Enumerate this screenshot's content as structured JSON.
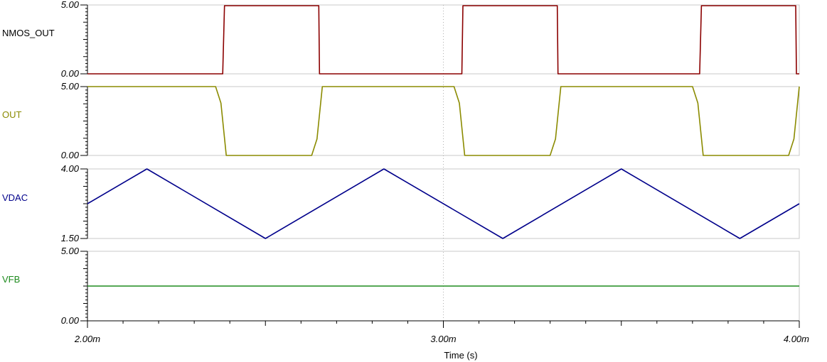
{
  "chart_data": {
    "type": "line",
    "x_unit": "s",
    "xlabel": "Time (s)",
    "xlim": [
      0.002,
      0.004
    ],
    "xticks": [
      {
        "value": 0.002,
        "label": "2.00m"
      },
      {
        "value": 0.003,
        "label": "3.00m"
      },
      {
        "value": 0.004,
        "label": "4.00m"
      }
    ],
    "grid": "vertical dotted line at 3.00m",
    "panels": [
      {
        "name": "NMOS_OUT",
        "color": "#8b0000",
        "ylim": [
          0,
          5
        ],
        "yticks": [
          "5.00",
          "0.00"
        ],
        "x": [
          0.002,
          0.00238,
          0.002385,
          0.00265,
          0.002652,
          0.003052,
          0.003055,
          0.00332,
          0.003322,
          0.00372,
          0.003725,
          0.00399,
          0.003992,
          0.004
        ],
        "y": [
          0,
          0,
          4.95,
          4.95,
          0,
          0,
          4.95,
          4.95,
          0,
          0,
          4.95,
          4.95,
          0,
          0
        ]
      },
      {
        "name": "OUT",
        "color": "#8b8b00",
        "ylim": [
          0,
          5
        ],
        "yticks": [
          "5.00",
          "0.00"
        ],
        "x": [
          0.002,
          0.00236,
          0.002375,
          0.00239,
          0.00263,
          0.002645,
          0.00266,
          0.00303,
          0.003045,
          0.00306,
          0.0033,
          0.003315,
          0.00333,
          0.0037,
          0.003715,
          0.00373,
          0.00397,
          0.003985,
          0.004
        ],
        "y": [
          5,
          5,
          3.8,
          0,
          0,
          1.2,
          5,
          5,
          3.8,
          0,
          0,
          1.2,
          5,
          5,
          3.8,
          0,
          0,
          1.2,
          5
        ]
      },
      {
        "name": "VDAC",
        "color": "#00008b",
        "ylim": [
          1.5,
          4
        ],
        "yticks": [
          "4.00",
          "1.50"
        ],
        "x": [
          0.002,
          0.002167,
          0.0025,
          0.002833,
          0.003167,
          0.0035,
          0.003833,
          0.004
        ],
        "y": [
          2.75,
          4,
          1.5,
          4,
          1.5,
          4,
          1.5,
          2.75
        ]
      },
      {
        "name": "VFB",
        "color": "#1e8b1e",
        "ylim": [
          0,
          5
        ],
        "yticks": [
          "5.00",
          "0.00"
        ],
        "x": [
          0.002,
          0.004
        ],
        "y": [
          2.5,
          2.5
        ]
      }
    ]
  }
}
